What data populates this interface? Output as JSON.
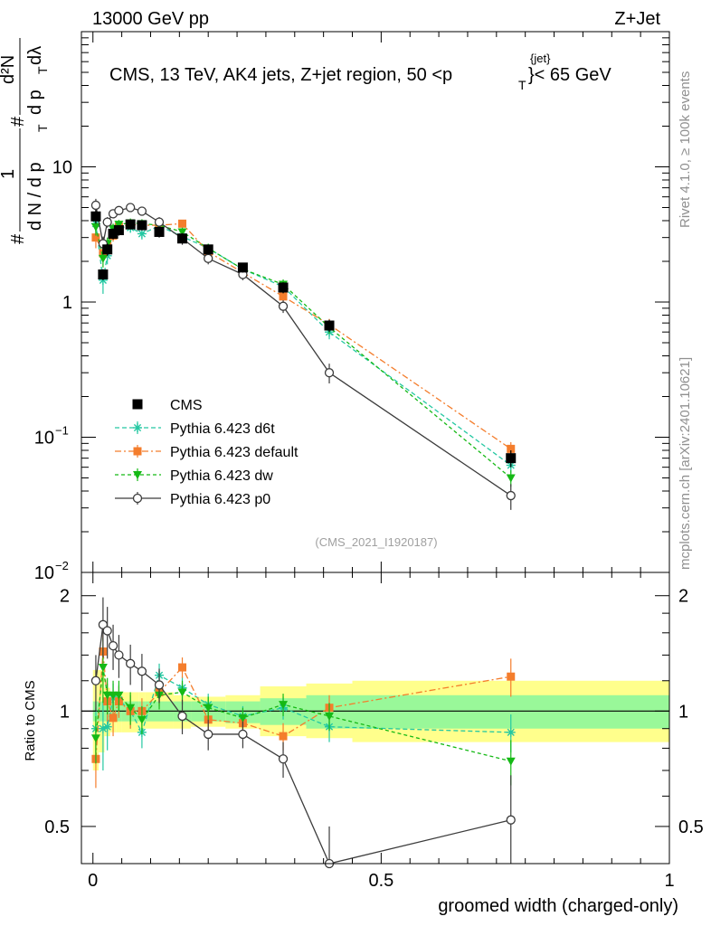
{
  "header": {
    "left": "13000 GeV pp",
    "right": "Z+Jet"
  },
  "title": {
    "main": "CMS, 13 TeV, AK4 jets, Z+jet region, 50 <p",
    "sub": "T",
    "sup": "{jet}",
    "tail": "}< 65 GeV"
  },
  "side_labels": {
    "rivet": "Rivet 4.1.0, ≥ 100k events",
    "mcplots": "mcplots.cern.ch [arXiv:2401.10621]"
  },
  "analysis_tag": "(CMS_2021_I1920187)",
  "ylabel_main": {
    "hash1": "#",
    "frac1_num": "1",
    "frac1_den": "d N / d p",
    "frac1_sub": "T",
    "hash2": "#",
    "frac2_num": "d²N",
    "frac2_den": "d p",
    "frac2_sub": "T",
    "frac2_tail": "dλ"
  },
  "ratio_label": "Ratio to CMS",
  "xlabel": "groomed width (charged-only)",
  "colors": {
    "data": "#000000",
    "d6t": "#24c8a2",
    "default": "#f47d2c",
    "dw": "#15b915",
    "p0": "#3c3c3c",
    "band_outer": "#ffff8c",
    "band_inner": "#99f899"
  },
  "legend": [
    {
      "key": "data",
      "label": "CMS"
    },
    {
      "key": "d6t",
      "label": "Pythia 6.423 d6t"
    },
    {
      "key": "default",
      "label": "Pythia 6.423 default"
    },
    {
      "key": "dw",
      "label": "Pythia 6.423 dw"
    },
    {
      "key": "p0",
      "label": "Pythia 6.423 p0"
    }
  ],
  "chart_data": {
    "type": "line",
    "xlim": [
      -0.02,
      1.0
    ],
    "main_ylim": [
      0.01,
      100
    ],
    "main_yscale": "log",
    "ratio_ylim": [
      0.4,
      2.3
    ],
    "ratio_yscale": "log",
    "main_yticks": [
      {
        "v": 0.01,
        "label": "10",
        "exp": "−2"
      },
      {
        "v": 0.1,
        "label": "10",
        "exp": "−1"
      },
      {
        "v": 1,
        "label": "1",
        "exp": ""
      },
      {
        "v": 10,
        "label": "10",
        "exp": ""
      }
    ],
    "ratio_yticks": [
      {
        "v": 0.5,
        "label": "0.5"
      },
      {
        "v": 1,
        "label": "1"
      },
      {
        "v": 2,
        "label": "2"
      }
    ],
    "xticks": [
      {
        "v": 0,
        "label": "0"
      },
      {
        "v": 0.5,
        "label": "0.5"
      },
      {
        "v": 1,
        "label": "1"
      }
    ],
    "x": [
      0.005,
      0.0175,
      0.025,
      0.035,
      0.045,
      0.065,
      0.085,
      0.115,
      0.155,
      0.2,
      0.26,
      0.33,
      0.41,
      0.725
    ],
    "bin_edges": [
      0.0,
      0.01,
      0.02,
      0.03,
      0.04,
      0.05,
      0.08,
      0.09,
      0.14,
      0.17,
      0.23,
      0.29,
      0.37,
      0.45,
      1.0
    ],
    "data": {
      "name": "CMS",
      "values": [
        4.3,
        1.6,
        2.45,
        3.2,
        3.4,
        3.75,
        3.7,
        3.3,
        2.95,
        2.45,
        1.8,
        1.28,
        0.67,
        0.07
      ],
      "errors": [
        0.5,
        0.15,
        0.25,
        0.3,
        0.3,
        0.3,
        0.3,
        0.3,
        0.25,
        0.2,
        0.15,
        0.12,
        0.07,
        0.01
      ]
    },
    "band_inner": [
      1.06,
      1.06,
      1.06,
      1.06,
      1.06,
      1.06,
      1.06,
      1.06,
      1.06,
      1.06,
      1.06,
      1.08,
      1.1,
      1.1
    ],
    "band_inner_lo": [
      0.94,
      0.94,
      0.94,
      0.94,
      0.94,
      0.94,
      0.94,
      0.94,
      0.94,
      0.94,
      0.93,
      0.92,
      0.9,
      0.9
    ],
    "band_outer": [
      1.28,
      1.28,
      1.15,
      1.12,
      1.12,
      1.12,
      1.12,
      1.12,
      1.1,
      1.09,
      1.1,
      1.16,
      1.18,
      1.2
    ],
    "band_outer_lo": [
      0.7,
      0.78,
      0.86,
      0.88,
      0.88,
      0.88,
      0.9,
      0.9,
      0.9,
      0.91,
      0.9,
      0.86,
      0.85,
      0.83
    ],
    "series": [
      {
        "name": "Pythia 6.423 d6t",
        "key": "d6t",
        "marker": "star",
        "dash": "5,3",
        "values": [
          3.8,
          1.45,
          2.2,
          3.4,
          3.6,
          3.55,
          3.2,
          3.65,
          3.05,
          2.5,
          1.75,
          1.3,
          0.6,
          0.062
        ],
        "errors": [
          0.5,
          0.3,
          0.3,
          0.3,
          0.3,
          0.3,
          0.3,
          0.3,
          0.25,
          0.2,
          0.15,
          0.12,
          0.07,
          0.008
        ],
        "ratio": [
          0.9,
          0.9,
          0.91,
          1.08,
          1.07,
          1.0,
          0.88,
          1.24,
          1.15,
          1.04,
          0.97,
          1.02,
          0.91,
          0.88
        ],
        "ratio_err": [
          0.12,
          0.2,
          0.12,
          0.1,
          0.1,
          0.1,
          0.08,
          0.09,
          0.08,
          0.07,
          0.06,
          0.07,
          0.08,
          0.1
        ]
      },
      {
        "name": "Pythia 6.423 default",
        "key": "default",
        "marker": "square",
        "dash": "7,3,2,3",
        "values": [
          3.0,
          2.3,
          2.6,
          3.1,
          3.6,
          3.75,
          3.7,
          3.7,
          3.8,
          2.35,
          1.65,
          1.1,
          0.68,
          0.082
        ],
        "errors": [
          0.5,
          0.3,
          0.3,
          0.3,
          0.3,
          0.3,
          0.3,
          0.3,
          0.25,
          0.2,
          0.15,
          0.12,
          0.07,
          0.01
        ],
        "ratio": [
          0.75,
          1.43,
          1.06,
          0.96,
          1.06,
          1.0,
          1.0,
          1.12,
          1.3,
          0.95,
          0.93,
          0.86,
          1.02,
          1.23
        ],
        "ratio_err": [
          0.12,
          0.15,
          0.12,
          0.1,
          0.1,
          0.1,
          0.08,
          0.09,
          0.08,
          0.07,
          0.06,
          0.07,
          0.08,
          0.14
        ]
      },
      {
        "name": "Pythia 6.423 dw",
        "key": "dw",
        "marker": "tri",
        "dash": "4,3",
        "values": [
          3.6,
          2.1,
          2.7,
          3.5,
          3.75,
          3.85,
          3.8,
          3.7,
          3.3,
          2.5,
          1.75,
          1.35,
          0.65,
          0.05
        ],
        "errors": [
          0.5,
          0.3,
          0.3,
          0.3,
          0.3,
          0.3,
          0.3,
          0.3,
          0.25,
          0.2,
          0.15,
          0.12,
          0.07,
          0.007
        ],
        "ratio": [
          0.85,
          1.3,
          1.1,
          1.1,
          1.1,
          1.02,
          0.95,
          1.1,
          1.12,
          1.02,
          0.96,
          1.04,
          0.97,
          0.74
        ],
        "ratio_err": [
          0.12,
          0.25,
          0.12,
          0.1,
          0.1,
          0.1,
          0.08,
          0.09,
          0.08,
          0.07,
          0.06,
          0.07,
          0.08,
          0.1
        ]
      },
      {
        "name": "Pythia 6.423 p0",
        "key": "p0",
        "marker": "circle",
        "dash": "",
        "values": [
          5.2,
          2.7,
          3.9,
          4.5,
          4.75,
          5.0,
          4.7,
          3.9,
          2.95,
          2.1,
          1.6,
          0.93,
          0.3,
          0.037
        ],
        "errors": [
          0.6,
          0.35,
          0.35,
          0.35,
          0.35,
          0.35,
          0.35,
          0.35,
          0.3,
          0.2,
          0.15,
          0.1,
          0.05,
          0.008
        ],
        "ratio": [
          1.2,
          1.68,
          1.62,
          1.48,
          1.4,
          1.33,
          1.27,
          1.17,
          0.97,
          0.87,
          0.87,
          0.75,
          0.4,
          0.52
        ],
        "ratio_err": [
          0.2,
          0.3,
          0.25,
          0.2,
          0.18,
          0.16,
          0.14,
          0.12,
          0.1,
          0.08,
          0.07,
          0.08,
          0.1,
          0.16
        ]
      }
    ]
  }
}
